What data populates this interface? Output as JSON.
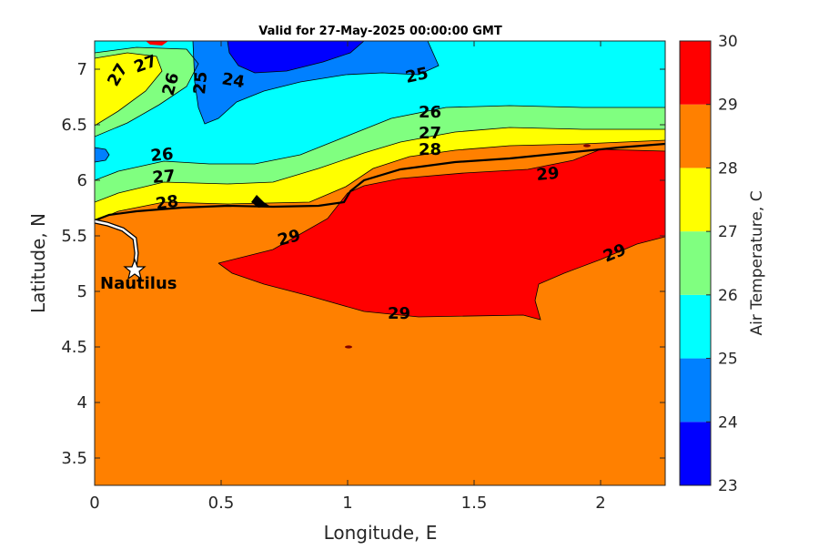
{
  "title": "Valid for 27-May-2025 00:00:00 GMT",
  "xlabel": "Longitude, E",
  "ylabel": "Latitude, N",
  "x_ticks": [
    "0",
    "0.5",
    "1",
    "1.5",
    "2"
  ],
  "y_ticks": [
    "3.5",
    "4",
    "4.5",
    "5",
    "5.5",
    "6",
    "6.5",
    "7"
  ],
  "colorbar": {
    "label": "Air Temperature, C",
    "ticks": [
      "23",
      "24",
      "25",
      "26",
      "27",
      "28",
      "29",
      "30"
    ],
    "colors": [
      "#0000ff",
      "#0080ff",
      "#00ffff",
      "#80ff80",
      "#ffff00",
      "#ff8000",
      "#ff0000",
      "#800000"
    ]
  },
  "contour_labels": {
    "l27_top": "27",
    "l27_topleft": "27",
    "l26_top": "26",
    "l25_top": "25",
    "l24": "24",
    "l25_right": "25",
    "l26_right": "26",
    "l27_right": "27",
    "l28_right": "28",
    "l26_left": "26",
    "l27_left": "27",
    "l28_left": "28",
    "l29_right": "29",
    "l29_mid": "29",
    "l29_east": "29",
    "l29_bottom": "29"
  },
  "station": {
    "name": "Nautilus",
    "icon": "star-marker"
  },
  "chart_data": {
    "type": "heatmap",
    "title": "Valid for 27-May-2025 00:00:00 GMT",
    "xlabel": "Longitude, E",
    "ylabel": "Latitude, N",
    "xlim": [
      0,
      2.25
    ],
    "ylim": [
      3.25,
      7.25
    ],
    "colorbar_range": [
      23,
      30
    ],
    "contour_levels": [
      23,
      24,
      25,
      26,
      27,
      28,
      29,
      30
    ],
    "station": {
      "name": "Nautilus",
      "lon": 0.16,
      "lat": 5.18
    }
  }
}
